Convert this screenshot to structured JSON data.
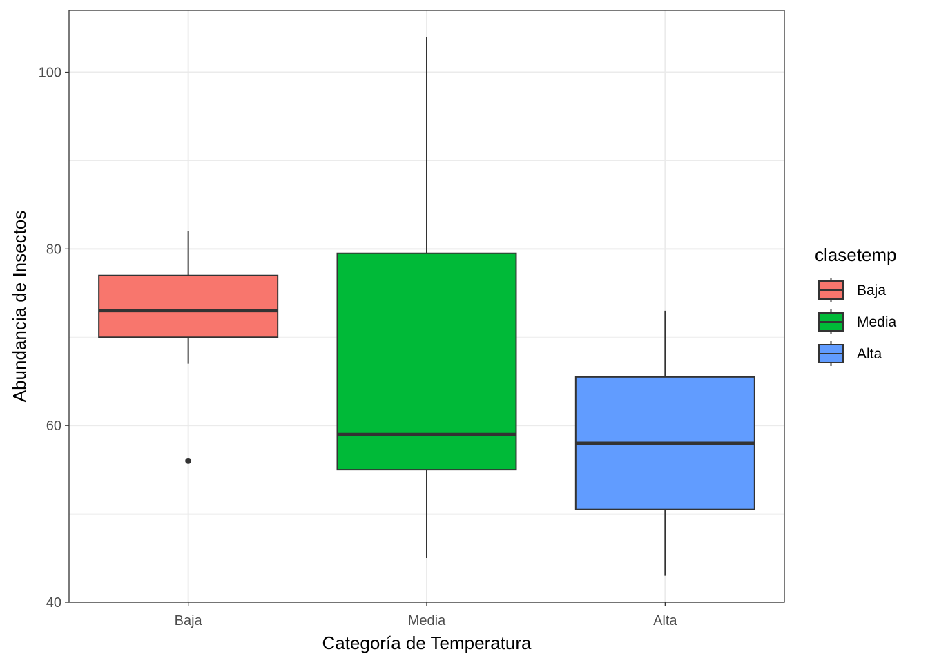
{
  "chart_data": {
    "type": "boxplot",
    "title": "",
    "xlabel": "Categoría de Temperatura",
    "ylabel": "Abundancia de Insectos",
    "categories": [
      "Baja",
      "Media",
      "Alta"
    ],
    "ylim": [
      40,
      107
    ],
    "yticks": [
      40,
      60,
      80,
      100
    ],
    "grid": true,
    "legend": {
      "title": "clasetemp",
      "position": "right",
      "entries": [
        "Baja",
        "Media",
        "Alta"
      ]
    },
    "colors": [
      "#F8766D",
      "#00BA38",
      "#619CFF"
    ],
    "series": [
      {
        "category": "Baja",
        "lower_whisker": 67,
        "q1": 70,
        "median": 73,
        "q3": 77,
        "upper_whisker": 82,
        "outliers": [
          56
        ]
      },
      {
        "category": "Media",
        "lower_whisker": 45,
        "q1": 55,
        "median": 59,
        "q3": 79.5,
        "upper_whisker": 104,
        "outliers": []
      },
      {
        "category": "Alta",
        "lower_whisker": 43,
        "q1": 50.5,
        "median": 58,
        "q3": 65.5,
        "upper_whisker": 73,
        "outliers": []
      }
    ]
  }
}
